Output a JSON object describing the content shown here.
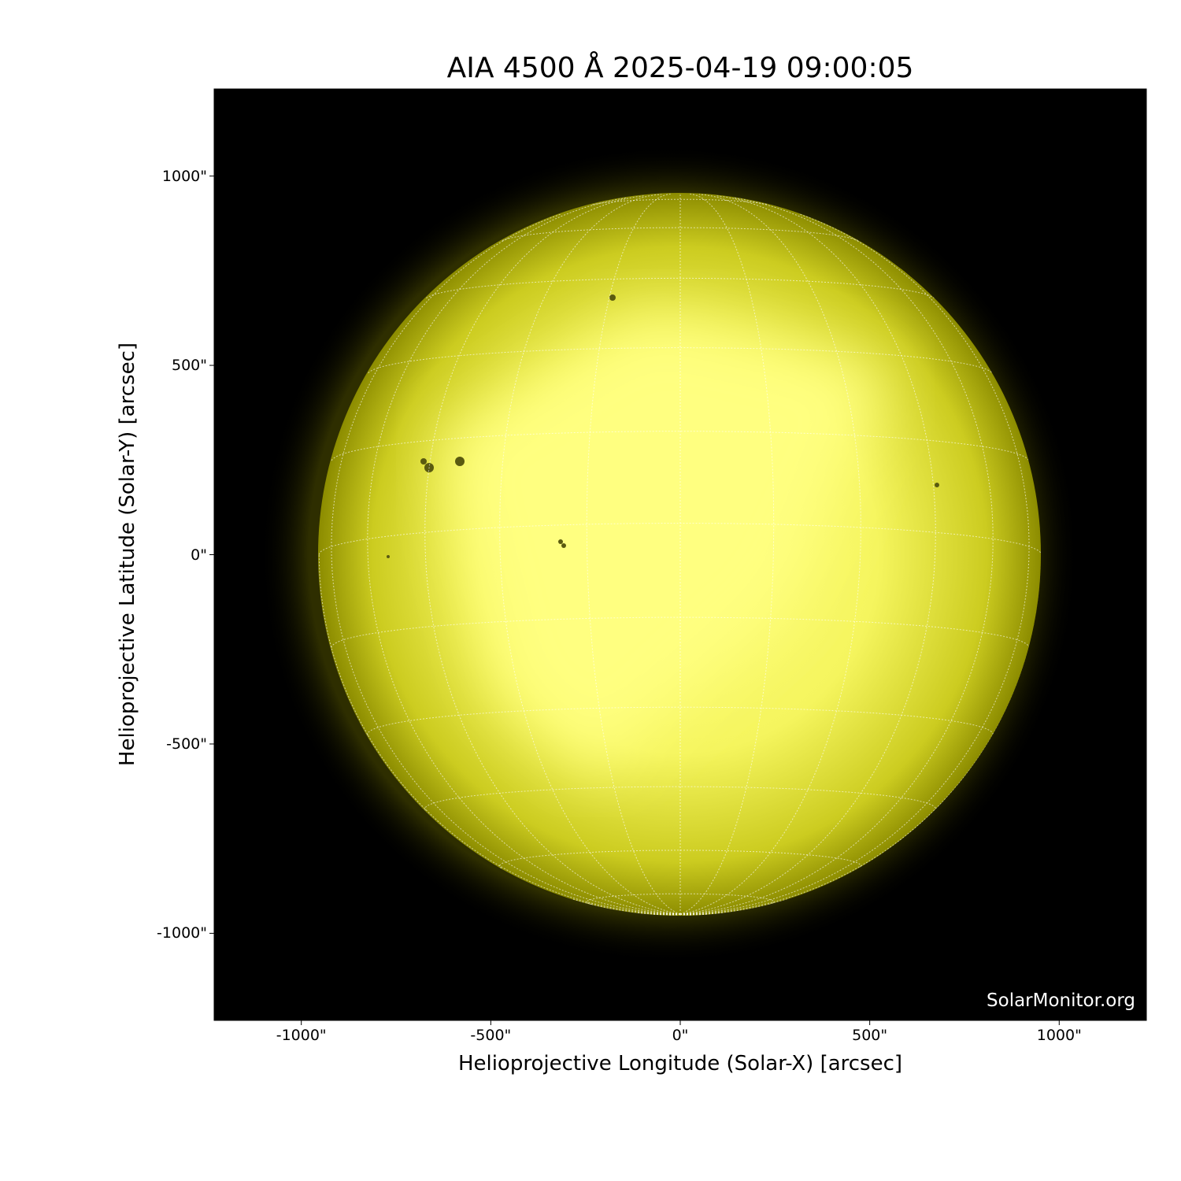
{
  "title": "AIA 4500 Å 2025-04-19 09:00:05",
  "xlabel": "Helioprojective Longitude (Solar-X) [arcsec]",
  "ylabel": "Helioprojective Latitude (Solar-Y) [arcsec]",
  "watermark": "SolarMonitor.org",
  "x_ticks": [
    "-1000\"",
    "-500\"",
    "0\"",
    "500\"",
    "1000\""
  ],
  "y_ticks": [
    "1000\"",
    "500\"",
    "0\"",
    "-500\"",
    "-1000\""
  ],
  "x_tick_values": [
    -1000,
    -500,
    0,
    500,
    1000
  ],
  "y_tick_values": [
    1000,
    500,
    0,
    -500,
    -1000
  ],
  "xlim": [
    -1230,
    1230
  ],
  "ylim": [
    -1230,
    1230
  ],
  "solar_radius_arcsec": 953,
  "grid_spacing_deg": 15,
  "colors": {
    "background": "#000000",
    "disk_bright": "#ffff80",
    "disk_limb": "#8c8c00",
    "grid": "#ffffff"
  }
}
